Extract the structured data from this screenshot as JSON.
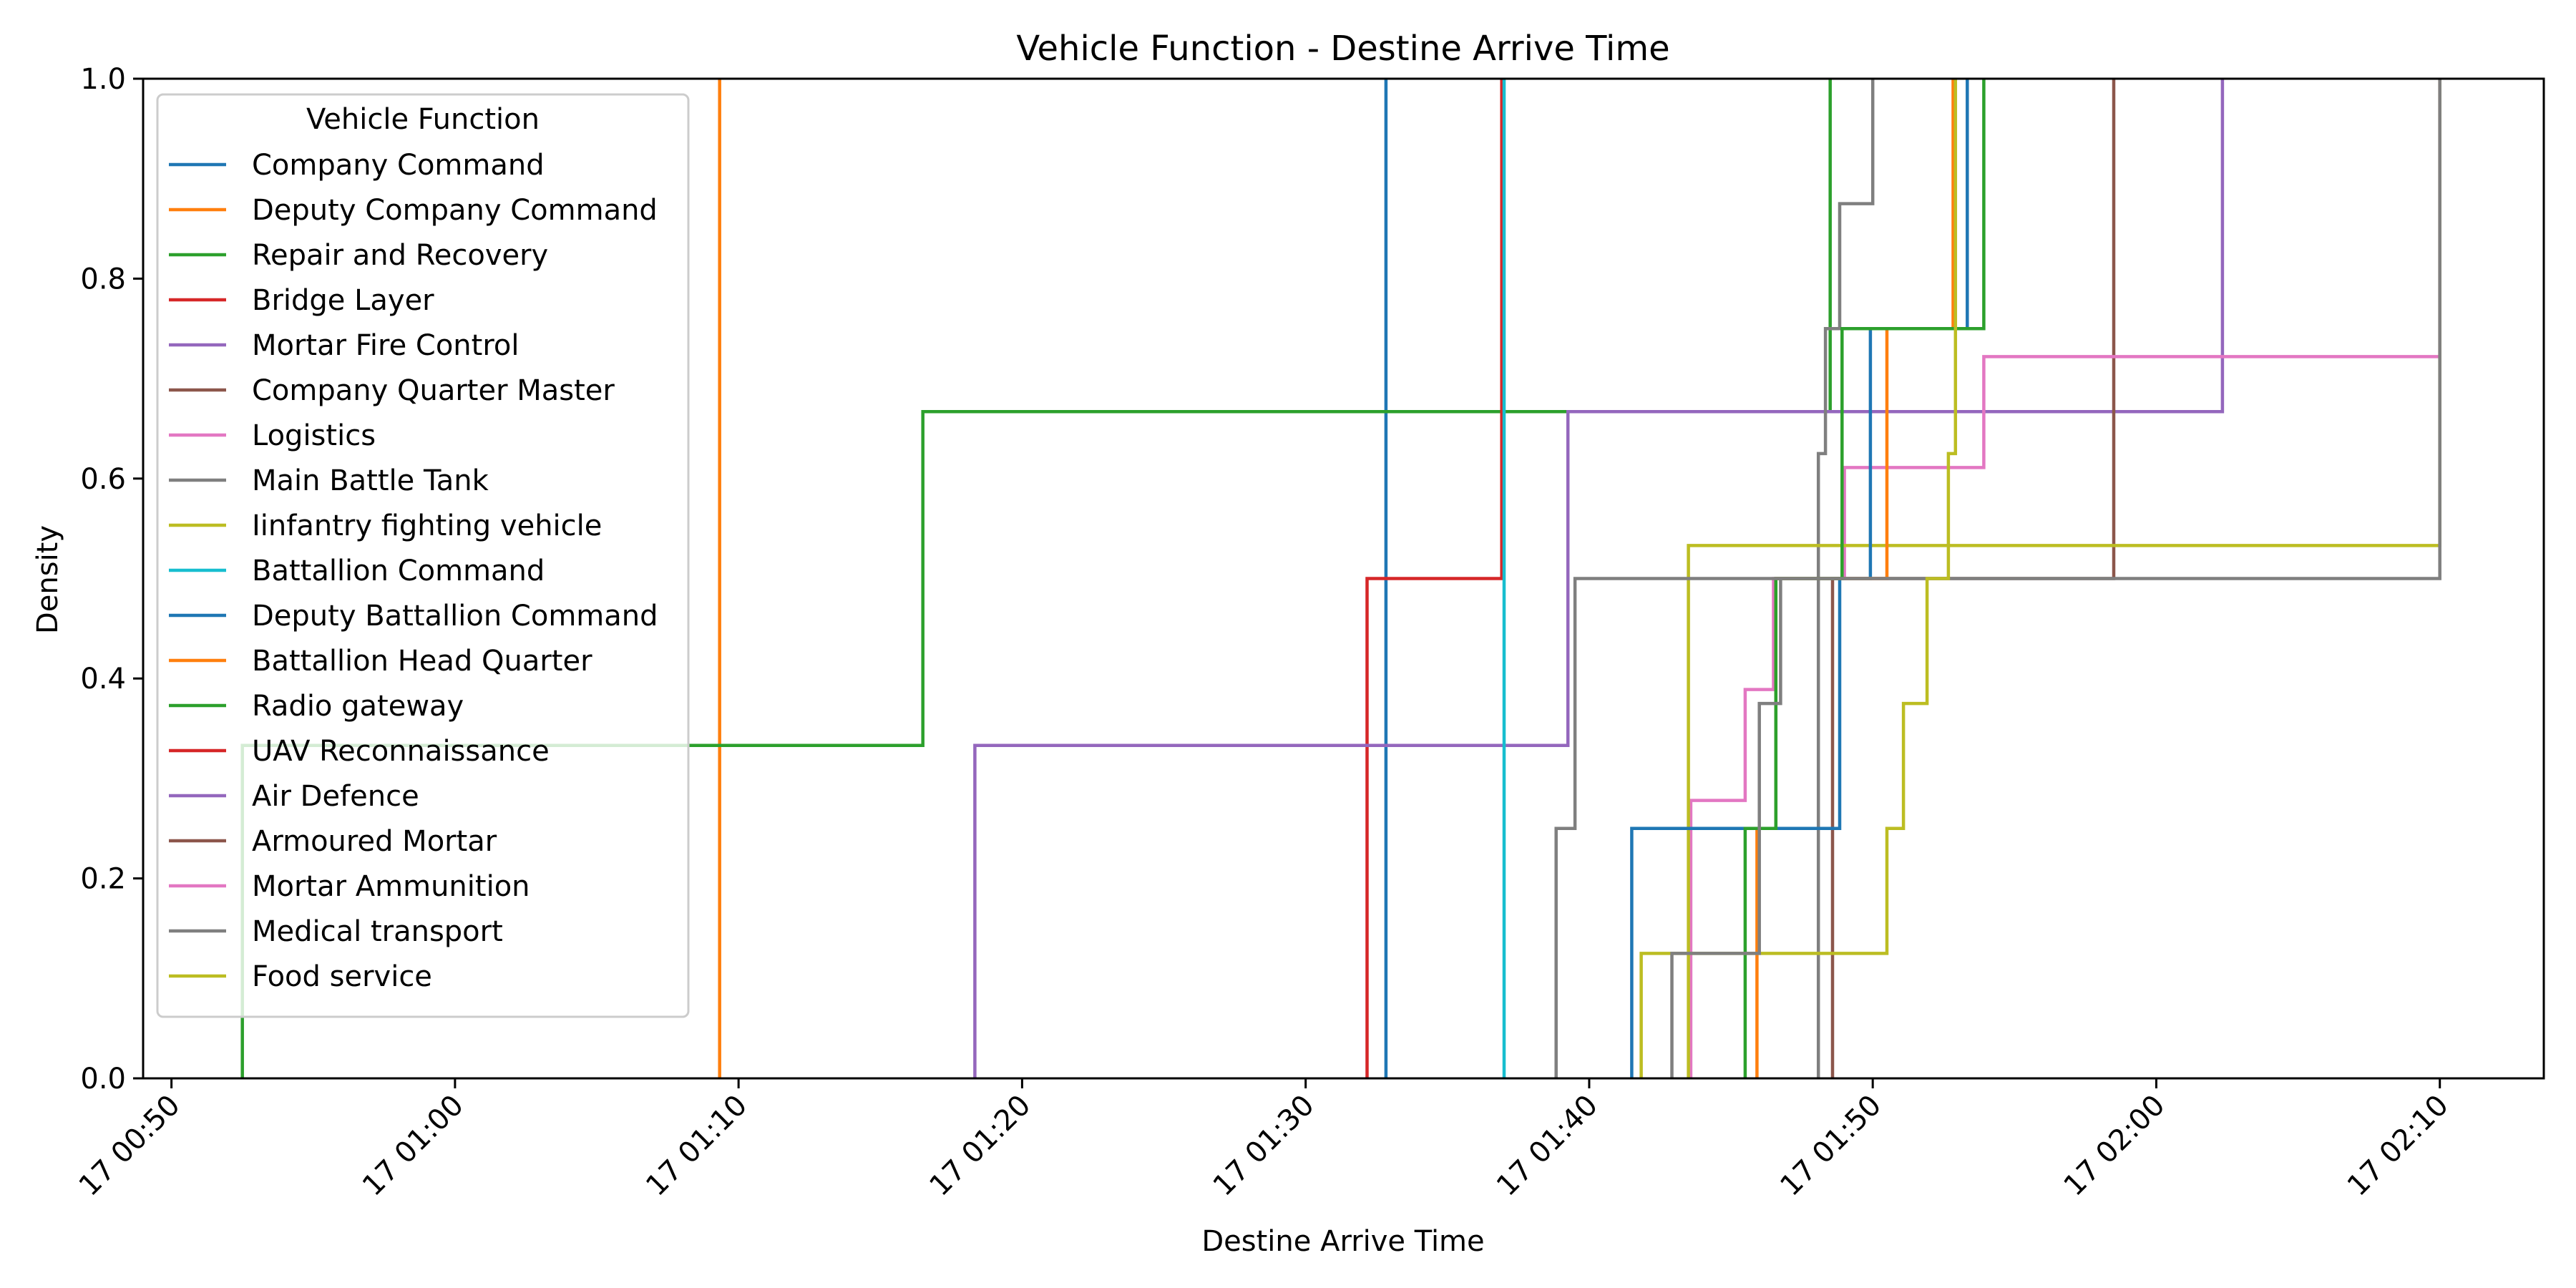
{
  "chart_data": {
    "type": "line",
    "drawstyle": "steps-post",
    "title": "Vehicle Function - Destine Arrive Time",
    "xlabel": "Destine Arrive Time",
    "ylabel": "Density",
    "xlim": [
      "2024-01-17 00:49:00",
      "2024-01-17 02:13:40"
    ],
    "ylim": [
      0,
      1
    ],
    "x_ticks": [
      "17 00:50",
      "17 01:00",
      "17 01:10",
      "17 01:20",
      "17 01:30",
      "17 01:40",
      "17 01:50",
      "17 02:00",
      "17 02:10"
    ],
    "y_ticks": [
      "0.0",
      "0.2",
      "0.4",
      "0.6",
      "0.8",
      "1.0"
    ],
    "grid": false,
    "legend": {
      "title": "Vehicle Function",
      "placement": "upper-left"
    },
    "series": [
      {
        "name": "Company Command",
        "color": "#1f77b4",
        "points": [
          [
            "01:32:50",
            0
          ],
          [
            "01:32:50",
            1
          ]
        ]
      },
      {
        "name": "Deputy Company Command",
        "color": "#ff7f0e",
        "points": [
          [
            "01:09:20",
            0
          ],
          [
            "01:09:20",
            1
          ]
        ]
      },
      {
        "name": "Repair and Recovery",
        "color": "#2ca02c",
        "points": [
          [
            "00:52:30",
            0
          ],
          [
            "00:52:30",
            0.333
          ],
          [
            "01:16:30",
            0.333
          ],
          [
            "01:16:30",
            0.667
          ],
          [
            "01:48:30",
            0.667
          ],
          [
            "01:48:30",
            1
          ]
        ]
      },
      {
        "name": "Bridge Layer",
        "color": "#d62728",
        "points": [
          [
            "01:32:10",
            0
          ],
          [
            "01:32:10",
            0.5
          ],
          [
            "01:36:55",
            0.5
          ],
          [
            "01:36:55",
            1
          ]
        ]
      },
      {
        "name": "Mortar Fire Control",
        "color": "#9467bd",
        "points": [
          [
            "01:18:20",
            0
          ],
          [
            "01:18:20",
            0.333
          ],
          [
            "01:39:15",
            0.333
          ],
          [
            "01:39:15",
            0.667
          ],
          [
            "02:02:20",
            0.667
          ],
          [
            "02:02:20",
            1
          ]
        ]
      },
      {
        "name": "Company Quarter Master",
        "color": "#8c564b",
        "points": [
          [
            "01:48:35",
            0
          ],
          [
            "01:48:35",
            0.5
          ],
          [
            "01:58:30",
            0.5
          ],
          [
            "01:58:30",
            1
          ]
        ]
      },
      {
        "name": "Logistics",
        "color": "#e377c2",
        "points": [
          [
            "01:43:35",
            0
          ],
          [
            "01:43:35",
            0.278
          ],
          [
            "01:45:30",
            0.278
          ],
          [
            "01:45:30",
            0.389
          ],
          [
            "01:46:30",
            0.389
          ],
          [
            "01:46:30",
            0.5
          ],
          [
            "01:49:00",
            0.5
          ],
          [
            "01:49:00",
            0.611
          ],
          [
            "01:53:55",
            0.611
          ],
          [
            "01:53:55",
            0.722
          ],
          [
            "02:10:00",
            0.722
          ],
          [
            "02:10:00",
            1
          ]
        ]
      },
      {
        "name": "Main Battle Tank",
        "color": "#7f7f7f",
        "points": [
          [
            "01:48:05",
            0
          ],
          [
            "01:48:05",
            0.625
          ],
          [
            "01:48:20",
            0.625
          ],
          [
            "01:48:20",
            0.75
          ],
          [
            "01:48:50",
            0.75
          ],
          [
            "01:48:50",
            0.875
          ],
          [
            "01:50:00",
            0.875
          ],
          [
            "01:50:00",
            1
          ]
        ]
      },
      {
        "name": "Iinfantry fighting vehicle",
        "color": "#bcbd22",
        "points": [
          [
            "01:43:30",
            0
          ],
          [
            "01:43:30",
            0.533
          ],
          [
            "02:10:00",
            0.533
          ],
          [
            "02:10:00",
            1
          ]
        ]
      },
      {
        "name": "Battallion Command",
        "color": "#17becf",
        "points": [
          [
            "01:37:00",
            0
          ],
          [
            "01:37:00",
            1
          ]
        ]
      },
      {
        "name": "Deputy Battallion Command",
        "color": "#1f77b4",
        "points": [
          [
            "01:41:30",
            0
          ],
          [
            "01:41:30",
            0.25
          ],
          [
            "01:48:50",
            0.25
          ],
          [
            "01:48:50",
            0.5
          ],
          [
            "01:49:55",
            0.5
          ],
          [
            "01:49:55",
            0.75
          ],
          [
            "01:53:20",
            0.75
          ],
          [
            "01:53:20",
            1
          ]
        ]
      },
      {
        "name": "Battallion Head Quarter",
        "color": "#ff7f0e",
        "points": [
          [
            "01:45:55",
            0
          ],
          [
            "01:45:55",
            0.25
          ],
          [
            "01:46:35",
            0.25
          ],
          [
            "01:46:35",
            0.5
          ],
          [
            "01:50:30",
            0.5
          ],
          [
            "01:50:30",
            0.75
          ],
          [
            "01:52:50",
            0.75
          ],
          [
            "01:52:50",
            1
          ]
        ]
      },
      {
        "name": "Radio gateway",
        "color": "#2ca02c",
        "points": [
          [
            "01:45:30",
            0
          ],
          [
            "01:45:30",
            0.25
          ],
          [
            "01:46:35",
            0.25
          ],
          [
            "01:46:35",
            0.5
          ],
          [
            "01:48:55",
            0.5
          ],
          [
            "01:48:55",
            0.75
          ],
          [
            "01:53:55",
            0.75
          ],
          [
            "01:53:55",
            1
          ]
        ]
      },
      {
        "name": "UAV Reconnaissance",
        "color": "#d62728",
        "points": []
      },
      {
        "name": "Air Defence",
        "color": "#9467bd",
        "points": []
      },
      {
        "name": "Armoured Mortar",
        "color": "#8c564b",
        "points": []
      },
      {
        "name": "Mortar Ammunition",
        "color": "#e377c2",
        "points": []
      },
      {
        "name": "Medical transport",
        "color": "#7f7f7f",
        "points": [
          [
            "01:38:50",
            0
          ],
          [
            "01:38:50",
            0.25
          ],
          [
            "01:39:30",
            0.25
          ],
          [
            "01:39:30",
            0.5
          ],
          [
            "02:10:00",
            0.5
          ],
          [
            "02:10:00",
            0.75
          ],
          [
            "02:10:00",
            1
          ]
        ]
      },
      {
        "name": "Food service",
        "color": "#bcbd22",
        "points": [
          [
            "01:41:50",
            0
          ],
          [
            "01:41:50",
            0.125
          ],
          [
            "01:50:30",
            0.125
          ],
          [
            "01:50:30",
            0.25
          ],
          [
            "01:51:05",
            0.25
          ],
          [
            "01:51:05",
            0.375
          ],
          [
            "01:51:55",
            0.375
          ],
          [
            "01:51:55",
            0.5
          ],
          [
            "01:52:40",
            0.5
          ],
          [
            "01:52:40",
            0.625
          ],
          [
            "01:52:55",
            0.625
          ],
          [
            "01:52:55",
            1
          ]
        ]
      }
    ]
  },
  "extra_segments": [
    {
      "series": "Main Battle Tank",
      "color": "#7f7f7f",
      "points": [
        [
          "01:42:55",
          0
        ],
        [
          "01:42:55",
          0.125
        ],
        [
          "01:46:00",
          0.125
        ],
        [
          "01:46:00",
          0.375
        ],
        [
          "01:46:45",
          0.375
        ],
        [
          "01:46:45",
          0.5
        ]
      ]
    }
  ]
}
